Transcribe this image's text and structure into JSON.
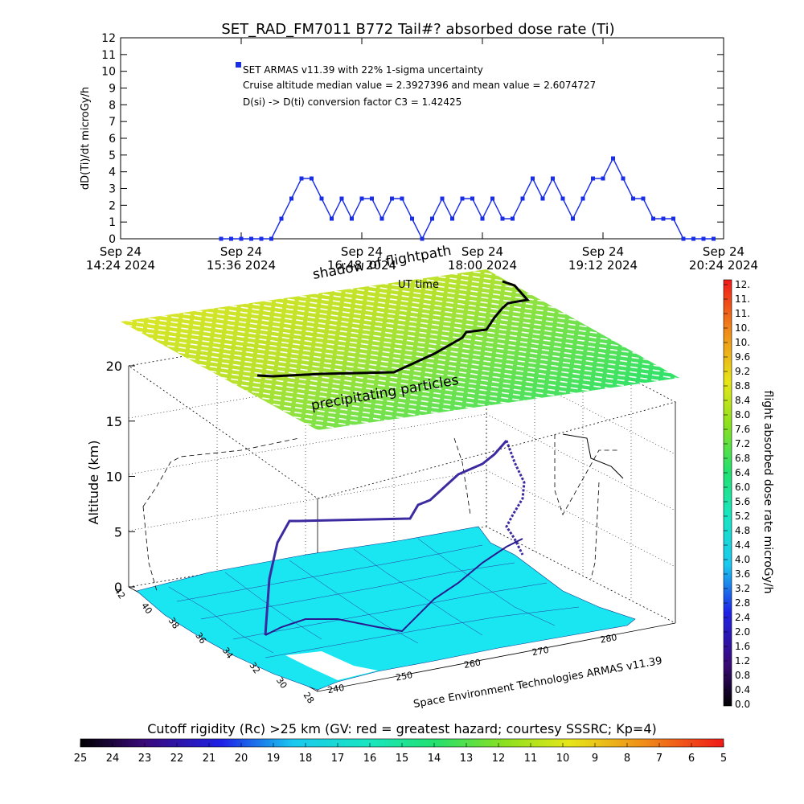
{
  "top_chart": {
    "title": "SET_RAD_FM7011  B772 Tail#? absorbed dose rate (Ti)",
    "ylabel": "dD(Ti)/dt microGy/h",
    "annotations": [
      "SET ARMAS v11.39 with 22% 1-sigma uncertainty",
      "Cruise altitude median value = 2.3927396 and mean value = 2.6074727",
      "D(si) -> D(ti) conversion factor C3 = 1.42425"
    ],
    "x_ticks": [
      {
        "line1": "Sep 24",
        "line2": "14:24 2024"
      },
      {
        "line1": "Sep 24",
        "line2": "15:36 2024"
      },
      {
        "line1": "Sep 24",
        "line2": "16:48 2024"
      },
      {
        "line1": "Sep 24",
        "line2": "18:00 2024"
      },
      {
        "line1": "Sep 24",
        "line2": "19:12 2024"
      },
      {
        "line1": "Sep 24",
        "line2": "20:24 2024"
      }
    ],
    "y_ticks": [
      "0",
      "1",
      "2",
      "3",
      "4",
      "5",
      "6",
      "7",
      "8",
      "9",
      "10",
      "11",
      "12"
    ],
    "colors": {
      "points": "#1a2ee6",
      "axis": "#000000"
    }
  },
  "chart_data": [
    {
      "type": "line",
      "title": "SET_RAD_FM7011  B772 Tail#? absorbed dose rate (Ti)",
      "xlabel": "",
      "ylabel": "dD(Ti)/dt microGy/h",
      "ylim": [
        0,
        12
      ],
      "xlim": [
        "14:24",
        "20:24"
      ],
      "series": [
        {
          "name": "SET ARMAS v11.39 with 22% 1-sigma uncertainty",
          "x": [
            "15:24",
            "15:30",
            "15:36",
            "15:42",
            "15:48",
            "15:54",
            "16:00",
            "16:06",
            "16:12",
            "16:18",
            "16:24",
            "16:30",
            "16:36",
            "16:42",
            "16:48",
            "16:54",
            "17:00",
            "17:06",
            "17:12",
            "17:18",
            "17:24",
            "17:30",
            "17:36",
            "17:42",
            "17:48",
            "17:54",
            "18:00",
            "18:06",
            "18:12",
            "18:18",
            "18:24",
            "18:30",
            "18:36",
            "18:42",
            "18:48",
            "18:54",
            "19:00",
            "19:06",
            "19:12",
            "19:18",
            "19:24",
            "19:30",
            "19:36",
            "19:42",
            "19:48",
            "19:54",
            "20:00",
            "20:06",
            "20:12",
            "20:18"
          ],
          "values": [
            0,
            0,
            0,
            0,
            0,
            0,
            1.2,
            2.4,
            3.6,
            3.6,
            2.4,
            1.2,
            2.4,
            1.2,
            2.4,
            2.4,
            1.2,
            2.4,
            2.4,
            1.2,
            0,
            1.2,
            2.4,
            1.2,
            2.4,
            2.4,
            1.2,
            2.4,
            1.2,
            1.2,
            2.4,
            3.6,
            2.4,
            3.6,
            2.4,
            1.2,
            2.4,
            3.6,
            3.6,
            4.8,
            3.6,
            2.4,
            2.4,
            1.2,
            1.2,
            1.2,
            0,
            0,
            0,
            0
          ]
        }
      ]
    },
    {
      "type": "scatter",
      "title": "",
      "xlabel": "",
      "ylabel": "Altitude (km)",
      "zlim": [
        0,
        20
      ],
      "z_ticks": [
        "0",
        "5",
        "10",
        "15",
        "20"
      ],
      "lat_ticks": [
        "42",
        "40",
        "38",
        "36",
        "34",
        "32",
        "30",
        "28"
      ],
      "lon_ticks": [
        "240",
        "250",
        "260",
        "270",
        "280"
      ]
    }
  ],
  "scene": {
    "label_shadow": "shadow of flightpath",
    "label_ut": "UT time",
    "label_particles": "precipitating particles",
    "zlabel": "Altitude (km)",
    "credit": "Space Environment Technologies ARMAS v11.39",
    "colors": {
      "land": "#19e6f0",
      "flightpath": "#3b2aa0",
      "shadow": "#000000"
    }
  },
  "right_colorbar": {
    "label": "flight absorbed dose rate microGy/h",
    "ticks": [
      "0.0",
      "0.4",
      "0.8",
      "1.2",
      "1.6",
      "2.0",
      "2.4",
      "2.8",
      "3.2",
      "3.6",
      "4.0",
      "4.4",
      "4.8",
      "5.2",
      "5.6",
      "6.0",
      "6.4",
      "6.8",
      "7.2",
      "7.6",
      "8.0",
      "8.4",
      "8.8",
      "9.2",
      "9.6",
      "10.",
      "10.",
      "11.",
      "11.",
      "12."
    ]
  },
  "bottom_colorbar": {
    "label": "Cutoff rigidity (Rc) >25 km (GV: red = greatest hazard; courtesy SSSRC; Kp=4)",
    "ticks": [
      "25",
      "24",
      "23",
      "22",
      "21",
      "20",
      "19",
      "18",
      "17",
      "16",
      "15",
      "14",
      "13",
      "12",
      "11",
      "10",
      "9",
      "8",
      "7",
      "6",
      "5"
    ]
  }
}
